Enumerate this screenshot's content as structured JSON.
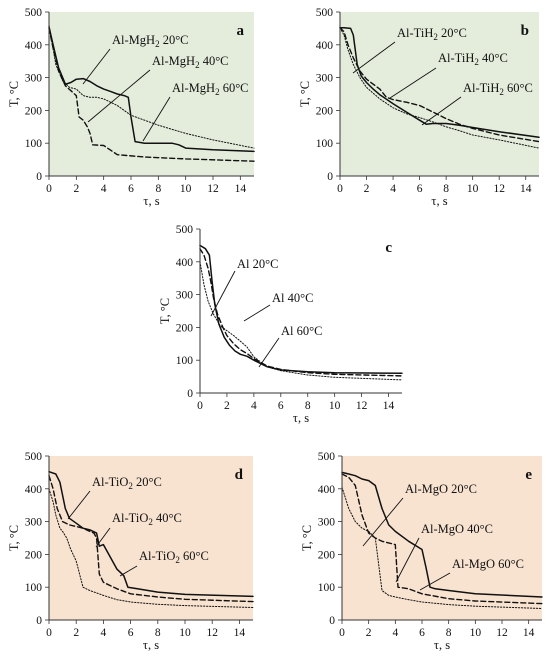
{
  "figure": {
    "panels": [
      {
        "id": "a",
        "panel_letter": "a",
        "background": "#e4eddc"
      },
      {
        "id": "b",
        "panel_letter": "b",
        "background": "#e4eddc"
      },
      {
        "id": "c",
        "panel_letter": "c",
        "background": "#ffffff"
      },
      {
        "id": "d",
        "panel_letter": "d",
        "background": "#f8e2d0"
      },
      {
        "id": "e",
        "panel_letter": "e",
        "background": "#f8e2d0"
      }
    ]
  },
  "chart_data": [
    {
      "id": "a",
      "type": "line",
      "panel_letter": "a",
      "xlabel": "τ, s",
      "ylabel": "T, °C",
      "xlim": [
        0,
        15
      ],
      "ylim": [
        0,
        500
      ],
      "xticks": [
        0,
        2,
        4,
        6,
        8,
        10,
        12,
        14
      ],
      "yticks": [
        0,
        100,
        200,
        300,
        400,
        500
      ],
      "grid": false,
      "series": [
        {
          "name": "Al-MgH2 20°C",
          "style": "solid",
          "x": [
            0,
            0.3,
            0.7,
            1.2,
            1.6,
            2.0,
            2.5,
            3.0,
            3.5,
            4.0,
            4.5,
            5.0,
            5.5,
            5.8,
            6.0,
            6.3,
            7.0,
            8.0,
            9.0,
            9.5,
            10.0,
            12.0,
            15.0
          ],
          "y": [
            455,
            400,
            330,
            280,
            285,
            295,
            297,
            288,
            275,
            265,
            258,
            250,
            245,
            240,
            180,
            105,
            100,
            100,
            100,
            95,
            85,
            80,
            75
          ]
        },
        {
          "name": "Al-MgH2 40°C",
          "style": "dashed",
          "x": [
            0,
            0.3,
            0.7,
            1.2,
            1.6,
            2.0,
            2.2,
            2.5,
            2.8,
            3.0,
            3.2,
            4.0,
            5.0,
            7.0,
            10.0,
            15.0
          ],
          "y": [
            450,
            390,
            320,
            275,
            260,
            245,
            180,
            170,
            150,
            130,
            95,
            93,
            65,
            58,
            52,
            45
          ]
        },
        {
          "name": "Al-MgH2 60°C",
          "style": "dotted",
          "x": [
            0,
            0.5,
            1.0,
            1.5,
            2.0,
            2.5,
            3.0,
            3.5,
            4.0,
            5.0,
            6.0,
            8.0,
            10.0,
            12.0,
            15.0
          ],
          "y": [
            460,
            340,
            290,
            270,
            265,
            245,
            240,
            240,
            235,
            215,
            185,
            155,
            130,
            110,
            85
          ]
        }
      ],
      "annotations": [
        {
          "series": "Al-MgH2 20°C",
          "base": "Al-MgH",
          "sub": "2",
          "temp": " 20°C"
        },
        {
          "series": "Al-MgH2 40°C",
          "base": "Al-MgH",
          "sub": "2",
          "temp": " 40°C"
        },
        {
          "series": "Al-MgH2 60°C",
          "base": "Al-MgH",
          "sub": "2",
          "temp": " 60°C"
        }
      ]
    },
    {
      "id": "b",
      "type": "line",
      "panel_letter": "b",
      "xlabel": "τ, s",
      "ylabel": "T, °C",
      "xlim": [
        0,
        15
      ],
      "ylim": [
        0,
        500
      ],
      "xticks": [
        0,
        2,
        4,
        6,
        8,
        10,
        12,
        14
      ],
      "yticks": [
        0,
        100,
        200,
        300,
        400,
        500
      ],
      "grid": false,
      "series": [
        {
          "name": "Al-TiH2 20°C",
          "style": "solid",
          "x": [
            0,
            0.3,
            0.8,
            1.0,
            1.3,
            1.6,
            2.0,
            2.5,
            3.0,
            4.0,
            5.0,
            6.0,
            6.5,
            7.0,
            8.0,
            9.0,
            10.0,
            12.0,
            15.0
          ],
          "y": [
            452,
            452,
            450,
            430,
            340,
            305,
            285,
            265,
            248,
            220,
            195,
            170,
            158,
            160,
            160,
            155,
            148,
            135,
            118
          ]
        },
        {
          "name": "Al-TiH2 40°C",
          "style": "dashed",
          "x": [
            0,
            0.3,
            0.6,
            1.0,
            1.5,
            2.0,
            3.0,
            3.5,
            4.0,
            5.0,
            6.0,
            7.0,
            8.0,
            9.0,
            10.0,
            12.0,
            15.0
          ],
          "y": [
            452,
            440,
            400,
            360,
            320,
            295,
            265,
            240,
            233,
            225,
            215,
            195,
            175,
            158,
            145,
            125,
            105
          ]
        },
        {
          "name": "Al-TiH2 60°C",
          "style": "dotted",
          "x": [
            0,
            0.3,
            0.6,
            1.0,
            1.5,
            2.0,
            3.0,
            4.0,
            5.0,
            6.0,
            7.0,
            8.0,
            9.0,
            10.0,
            12.0,
            15.0
          ],
          "y": [
            452,
            430,
            385,
            340,
            300,
            270,
            235,
            208,
            190,
            178,
            165,
            150,
            138,
            125,
            110,
            85
          ]
        }
      ],
      "annotations": [
        {
          "series": "Al-TiH2 20°C",
          "base": "Al-TiH",
          "sub": "2",
          "temp": " 20°C"
        },
        {
          "series": "Al-TiH2 40°C",
          "base": "Al-TiH",
          "sub": "2",
          "temp": " 40°C"
        },
        {
          "series": "Al-TiH2 60°C",
          "base": "Al-TiH",
          "sub": "2",
          "temp": " 60°C"
        }
      ]
    },
    {
      "id": "c",
      "type": "line",
      "panel_letter": "c",
      "xlabel": "τ, s",
      "ylabel": "T, °C",
      "xlim": [
        0,
        15
      ],
      "ylim": [
        0,
        500
      ],
      "xticks": [
        0,
        2,
        4,
        6,
        8,
        10,
        12,
        14
      ],
      "yticks": [
        0,
        100,
        200,
        300,
        400,
        500
      ],
      "grid": false,
      "series": [
        {
          "name": "Al 20°C",
          "style": "solid",
          "x": [
            0,
            0.4,
            0.7,
            0.9,
            1.1,
            1.4,
            1.8,
            2.2,
            2.6,
            3.0,
            3.5,
            4.0,
            5.0,
            6.0,
            8.0,
            10.0,
            15.0
          ],
          "y": [
            450,
            440,
            420,
            340,
            270,
            210,
            170,
            145,
            128,
            118,
            112,
            100,
            80,
            70,
            65,
            62,
            60
          ]
        },
        {
          "name": "Al 40°C",
          "style": "dashed",
          "x": [
            0,
            0.3,
            0.6,
            0.8,
            1.0,
            1.3,
            1.7,
            2.0,
            2.5,
            3.0,
            3.5,
            4.0,
            5.0,
            6.0,
            8.0,
            10.0,
            15.0
          ],
          "y": [
            440,
            420,
            380,
            340,
            290,
            240,
            200,
            175,
            150,
            132,
            120,
            105,
            82,
            72,
            62,
            57,
            52
          ]
        },
        {
          "name": "Al 60°C",
          "style": "dotted",
          "x": [
            0,
            0.3,
            0.6,
            1.0,
            1.5,
            2.0,
            2.5,
            3.0,
            3.5,
            4.0,
            5.0,
            6.0,
            8.0,
            10.0,
            15.0
          ],
          "y": [
            400,
            330,
            280,
            240,
            205,
            190,
            175,
            158,
            140,
            110,
            80,
            68,
            55,
            48,
            40
          ]
        }
      ],
      "annotations": [
        {
          "series": "Al 20°C",
          "base": "Al  20°C",
          "sub": "",
          "temp": ""
        },
        {
          "series": "Al 40°C",
          "base": "Al  40°C",
          "sub": "",
          "temp": ""
        },
        {
          "series": "Al 60°C",
          "base": "Al 60°C",
          "sub": "",
          "temp": ""
        }
      ]
    },
    {
      "id": "d",
      "type": "line",
      "panel_letter": "d",
      "xlabel": "τ, s",
      "ylabel": "T, °C",
      "xlim": [
        0,
        15
      ],
      "ylim": [
        0,
        500
      ],
      "xticks": [
        0,
        2,
        4,
        6,
        8,
        10,
        12,
        14
      ],
      "yticks": [
        0,
        100,
        200,
        300,
        400,
        500
      ],
      "grid": false,
      "series": [
        {
          "name": "Al-TiO2 20°C",
          "style": "solid",
          "x": [
            0,
            0.5,
            0.8,
            1.2,
            1.5,
            2.0,
            2.5,
            3.0,
            3.5,
            3.7,
            4.0,
            5.0,
            5.5,
            5.8,
            6.5,
            8.0,
            10.0,
            15.0
          ],
          "y": [
            452,
            445,
            420,
            340,
            310,
            295,
            280,
            275,
            265,
            225,
            230,
            155,
            135,
            100,
            95,
            85,
            78,
            72
          ]
        },
        {
          "name": "Al-TiO2 40°C",
          "style": "dashed",
          "x": [
            0,
            0.3,
            0.6,
            1.0,
            1.5,
            2.0,
            2.5,
            3.0,
            3.3,
            3.5,
            3.7,
            4.0,
            5.0,
            6.0,
            8.0,
            10.0,
            15.0
          ],
          "y": [
            440,
            400,
            340,
            300,
            290,
            285,
            280,
            270,
            265,
            250,
            140,
            115,
            95,
            80,
            70,
            63,
            56
          ]
        },
        {
          "name": "Al-TiO2 60°C",
          "style": "dotted",
          "x": [
            0,
            0.3,
            0.5,
            0.8,
            1.0,
            1.3,
            1.6,
            2.0,
            2.5,
            3.0,
            4.0,
            5.0,
            6.0,
            8.0,
            10.0,
            15.0
          ],
          "y": [
            400,
            360,
            320,
            280,
            270,
            250,
            215,
            180,
            100,
            90,
            75,
            62,
            55,
            48,
            44,
            38
          ]
        }
      ],
      "annotations": [
        {
          "series": "Al-TiO2 20°C",
          "base": "Al-TiO",
          "sub": "2",
          "temp": "  20°C"
        },
        {
          "series": "Al-TiO2 40°C",
          "base": "Al-TiO",
          "sub": "2",
          "temp": "  40°C"
        },
        {
          "series": "Al-TiO2 60°C",
          "base": "Al-TiO",
          "sub": "2",
          "temp": " 60°C"
        }
      ]
    },
    {
      "id": "e",
      "type": "line",
      "panel_letter": "e",
      "xlabel": "τ, s",
      "ylabel": "T, °C",
      "xlim": [
        0,
        15
      ],
      "ylim": [
        0,
        500
      ],
      "xticks": [
        0,
        2,
        4,
        6,
        8,
        10,
        12,
        14
      ],
      "yticks": [
        0,
        100,
        200,
        300,
        400,
        500
      ],
      "grid": false,
      "series": [
        {
          "name": "Al-MgO 20°C",
          "style": "solid",
          "x": [
            0,
            0.5,
            1.0,
            1.5,
            2.0,
            2.5,
            3.0,
            3.5,
            4.0,
            5.0,
            6.0,
            6.3,
            6.6,
            7.0,
            8.0,
            10.0,
            15.0
          ],
          "y": [
            450,
            445,
            440,
            430,
            425,
            410,
            340,
            290,
            270,
            240,
            215,
            160,
            100,
            95,
            90,
            80,
            70
          ]
        },
        {
          "name": "Al-MgO 40°C",
          "style": "dashed",
          "x": [
            0,
            0.5,
            1.0,
            1.5,
            2.0,
            2.5,
            3.0,
            3.5,
            4.0,
            4.2,
            5.0,
            6.0,
            8.0,
            10.0,
            15.0
          ],
          "y": [
            445,
            435,
            410,
            320,
            265,
            250,
            240,
            235,
            230,
            100,
            95,
            80,
            65,
            58,
            50
          ]
        },
        {
          "name": "Al-MgO 60°C",
          "style": "dotted",
          "x": [
            0,
            0.5,
            1.0,
            1.5,
            2.0,
            2.5,
            3.0,
            3.5,
            4.0,
            5.0,
            6.0,
            8.0,
            10.0,
            15.0
          ],
          "y": [
            405,
            340,
            300,
            280,
            270,
            250,
            90,
            75,
            70,
            62,
            55,
            47,
            42,
            35
          ]
        }
      ],
      "annotations": [
        {
          "series": "Al-MgO 20°C",
          "base": "Al-MgO  20°C",
          "sub": "",
          "temp": ""
        },
        {
          "series": "Al-MgO 40°C",
          "base": "Al-MgO  40°C",
          "sub": "",
          "temp": ""
        },
        {
          "series": "Al-MgO 60°C",
          "base": "Al-MgO 60°C",
          "sub": "",
          "temp": ""
        }
      ]
    }
  ]
}
